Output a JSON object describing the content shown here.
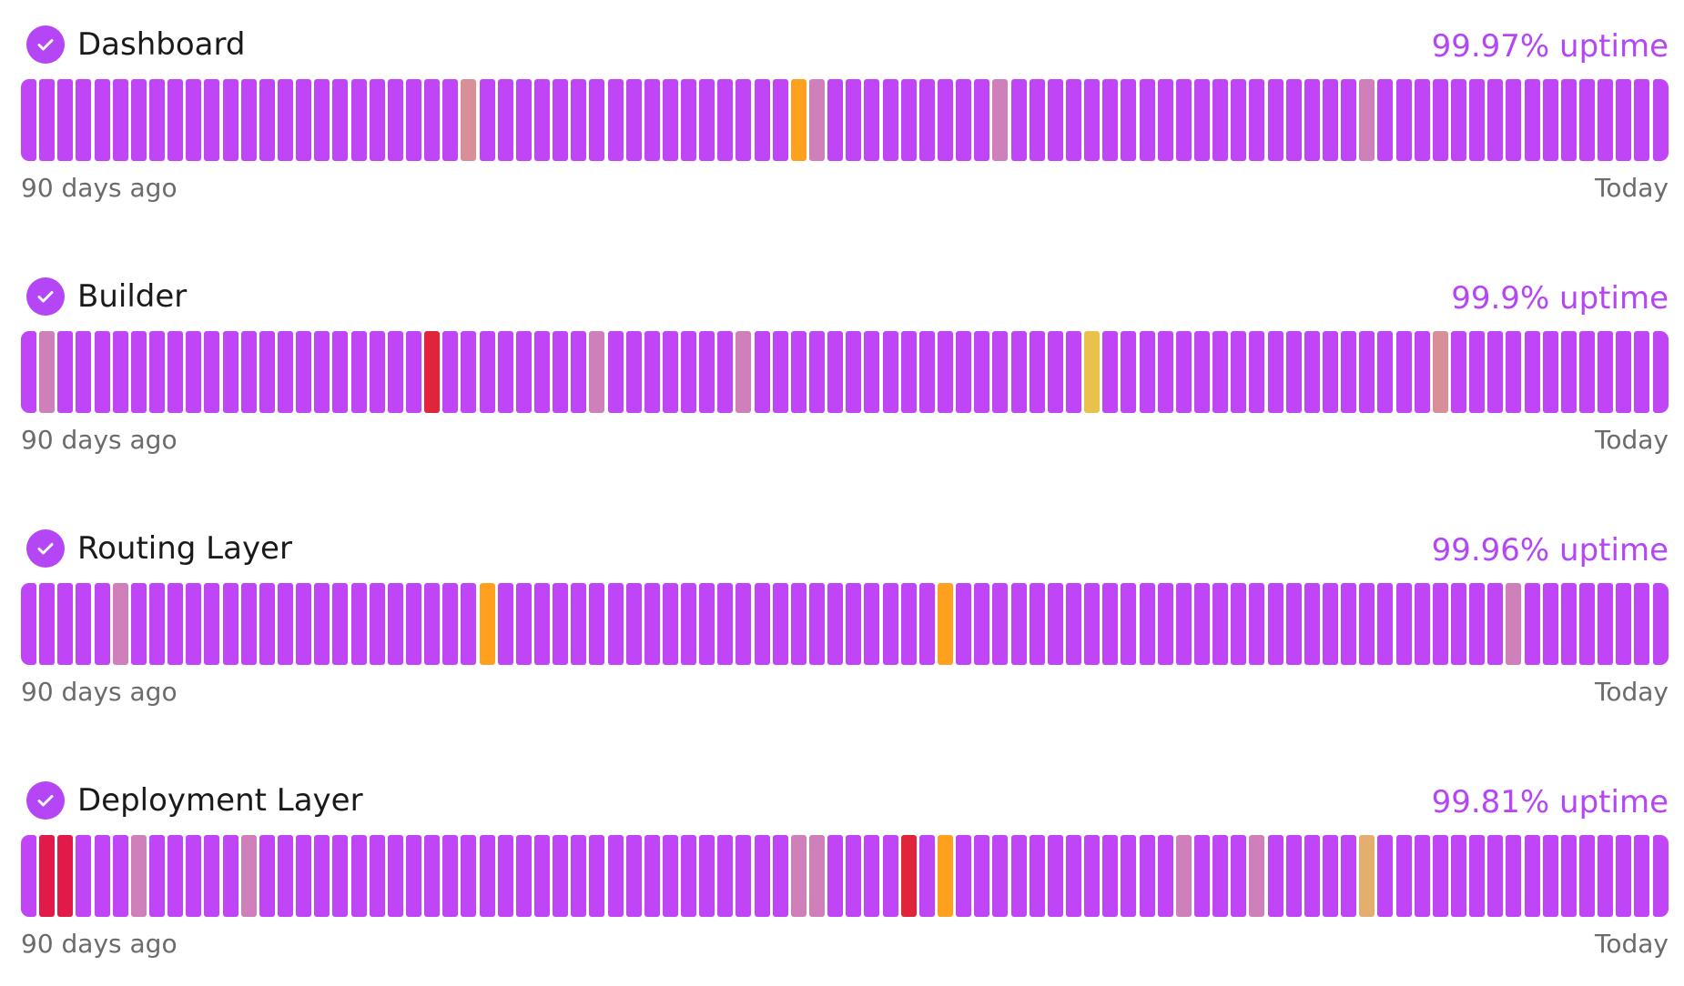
{
  "colors": {
    "operational": "#bf45f7",
    "check_bg": "#b546f5",
    "uptime_text": "#b546f5",
    "pink": "#cf7fba",
    "rose": "#d98f98",
    "orange": "#ffa11e",
    "yellow": "#e8c24a",
    "tan": "#e4ae6e",
    "red": "#e0253a",
    "crimson": "#e21a4a"
  },
  "components": [
    {
      "name": "Dashboard",
      "uptime": "99.97% uptime",
      "range_start": "90 days ago",
      "range_end": "Today",
      "status_icon": "check-circle-icon",
      "incidents": [
        {
          "day": 24,
          "color": "rose"
        },
        {
          "day": 42,
          "color": "orange"
        },
        {
          "day": 43,
          "color": "pink"
        },
        {
          "day": 53,
          "color": "pink"
        },
        {
          "day": 73,
          "color": "pink"
        }
      ]
    },
    {
      "name": "Builder",
      "uptime": "99.9% uptime",
      "range_start": "90 days ago",
      "range_end": "Today",
      "status_icon": "check-circle-icon",
      "incidents": [
        {
          "day": 1,
          "color": "pink"
        },
        {
          "day": 22,
          "color": "red"
        },
        {
          "day": 31,
          "color": "pink"
        },
        {
          "day": 39,
          "color": "pink"
        },
        {
          "day": 58,
          "color": "yellow"
        },
        {
          "day": 77,
          "color": "rose"
        }
      ]
    },
    {
      "name": "Routing Layer",
      "uptime": "99.96% uptime",
      "range_start": "90 days ago",
      "range_end": "Today",
      "status_icon": "check-circle-icon",
      "incidents": [
        {
          "day": 5,
          "color": "pink"
        },
        {
          "day": 25,
          "color": "orange"
        },
        {
          "day": 50,
          "color": "orange"
        },
        {
          "day": 81,
          "color": "pink"
        }
      ]
    },
    {
      "name": "Deployment Layer",
      "uptime": "99.81% uptime",
      "range_start": "90 days ago",
      "range_end": "Today",
      "status_icon": "check-circle-icon",
      "incidents": [
        {
          "day": 1,
          "color": "crimson"
        },
        {
          "day": 2,
          "color": "crimson"
        },
        {
          "day": 6,
          "color": "pink"
        },
        {
          "day": 12,
          "color": "pink"
        },
        {
          "day": 42,
          "color": "pink"
        },
        {
          "day": 43,
          "color": "pink"
        },
        {
          "day": 48,
          "color": "red"
        },
        {
          "day": 50,
          "color": "orange"
        },
        {
          "day": 63,
          "color": "pink"
        },
        {
          "day": 67,
          "color": "pink"
        },
        {
          "day": 73,
          "color": "tan"
        }
      ]
    }
  ],
  "days": 90
}
